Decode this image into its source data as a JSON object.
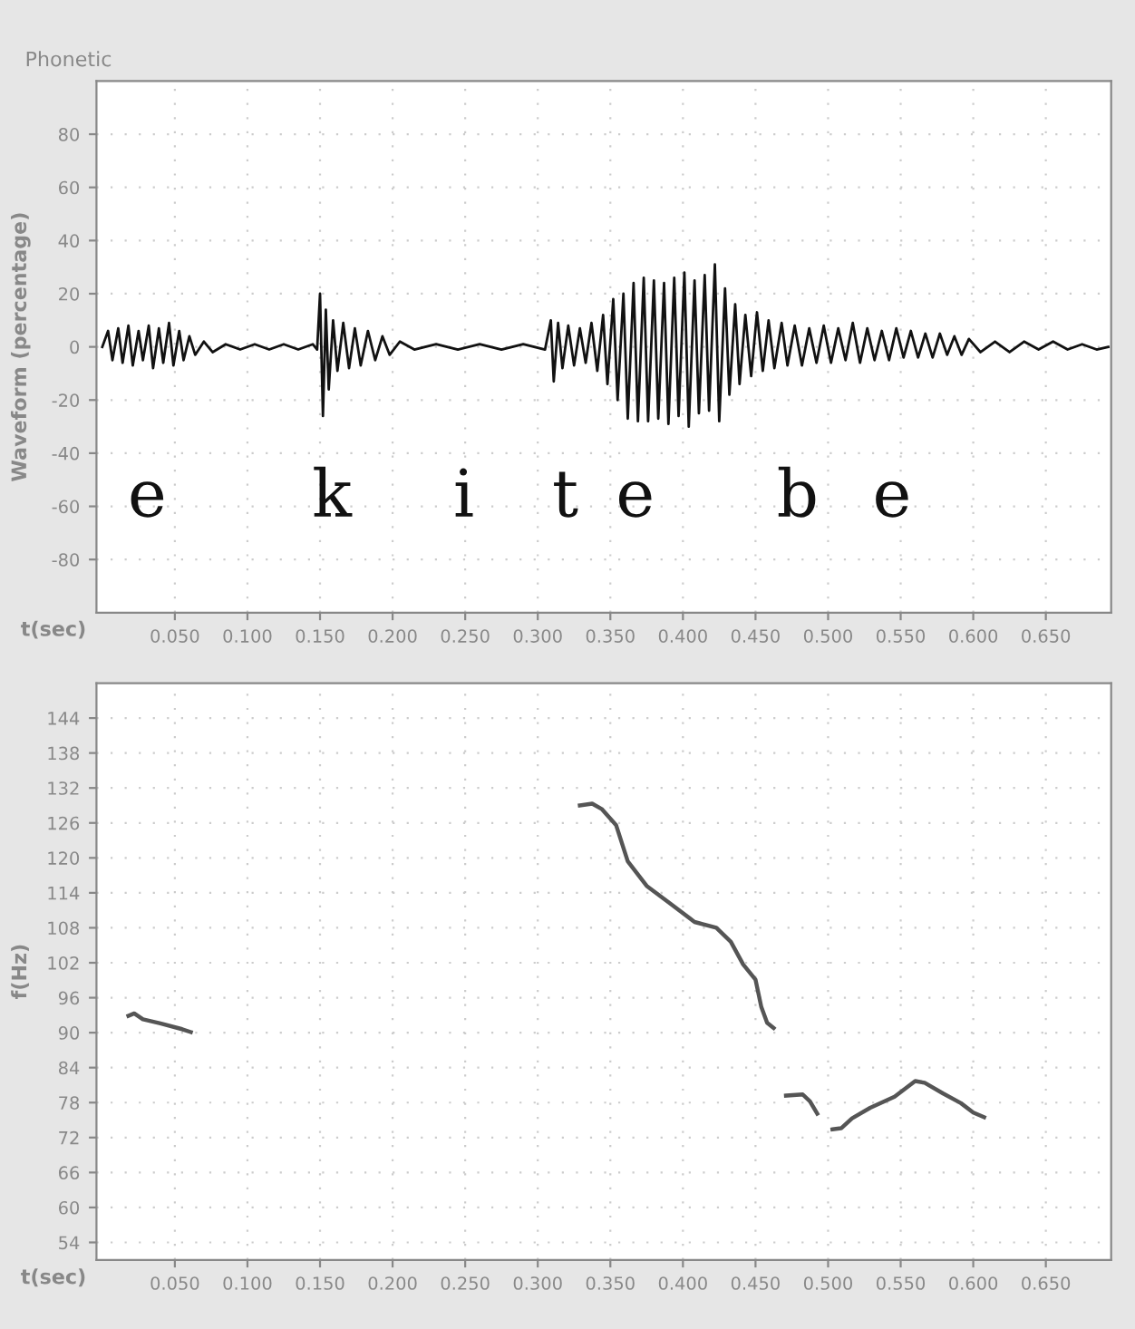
{
  "chart_data": [
    {
      "type": "line",
      "title": "Phonetic",
      "xlabel": "t(sec)",
      "ylabel": "Waveform (percentage)",
      "grid": true,
      "x": [
        0.0,
        0.004,
        0.007,
        0.011,
        0.014,
        0.018,
        0.021,
        0.025,
        0.028,
        0.032,
        0.035,
        0.039,
        0.042,
        0.046,
        0.049,
        0.053,
        0.056,
        0.06,
        0.064,
        0.07,
        0.076,
        0.085,
        0.095,
        0.105,
        0.115,
        0.125,
        0.135,
        0.145,
        0.148,
        0.15,
        0.152,
        0.154,
        0.156,
        0.159,
        0.162,
        0.166,
        0.17,
        0.174,
        0.178,
        0.183,
        0.188,
        0.193,
        0.198,
        0.205,
        0.215,
        0.23,
        0.245,
        0.26,
        0.275,
        0.29,
        0.305,
        0.309,
        0.311,
        0.314,
        0.317,
        0.321,
        0.325,
        0.329,
        0.333,
        0.337,
        0.341,
        0.345,
        0.348,
        0.352,
        0.355,
        0.359,
        0.362,
        0.366,
        0.369,
        0.373,
        0.376,
        0.38,
        0.383,
        0.387,
        0.39,
        0.394,
        0.397,
        0.401,
        0.404,
        0.408,
        0.411,
        0.415,
        0.418,
        0.422,
        0.425,
        0.429,
        0.432,
        0.436,
        0.439,
        0.443,
        0.447,
        0.451,
        0.455,
        0.459,
        0.463,
        0.468,
        0.472,
        0.477,
        0.482,
        0.487,
        0.492,
        0.497,
        0.502,
        0.507,
        0.512,
        0.517,
        0.522,
        0.527,
        0.532,
        0.537,
        0.542,
        0.547,
        0.552,
        0.557,
        0.562,
        0.567,
        0.572,
        0.577,
        0.582,
        0.587,
        0.592,
        0.597,
        0.605,
        0.615,
        0.625,
        0.635,
        0.645,
        0.655,
        0.665,
        0.675,
        0.685,
        0.693
      ],
      "series": [
        {
          "color": "#111111",
          "values": [
            0,
            6,
            -5,
            7,
            -6,
            8,
            -7,
            6,
            -5,
            8,
            -8,
            7,
            -6,
            9,
            -7,
            6,
            -5,
            4,
            -3,
            2,
            -2,
            1,
            -1,
            1,
            -1,
            1,
            -1,
            1,
            -1,
            20,
            -26,
            14,
            -16,
            10,
            -9,
            9,
            -8,
            7,
            -7,
            6,
            -5,
            4,
            -3,
            2,
            -1,
            1,
            -1,
            1,
            -1,
            1,
            -1,
            10,
            -13,
            9,
            -8,
            8,
            -7,
            7,
            -6,
            9,
            -9,
            12,
            -14,
            18,
            -20,
            20,
            -27,
            24,
            -28,
            26,
            -28,
            25,
            -27,
            24,
            -29,
            26,
            -26,
            28,
            -30,
            25,
            -25,
            27,
            -24,
            31,
            -28,
            22,
            -18,
            16,
            -14,
            12,
            -11,
            13,
            -9,
            10,
            -8,
            9,
            -7,
            8,
            -7,
            7,
            -6,
            8,
            -6,
            7,
            -5,
            9,
            -6,
            7,
            -5,
            6,
            -5,
            7,
            -4,
            6,
            -4,
            5,
            -4,
            5,
            -3,
            4,
            -3,
            3,
            -2,
            2,
            -2,
            2,
            -1,
            2,
            -1,
            1,
            -1,
            0
          ]
        }
      ],
      "xlim": [
        -0.004,
        0.695
      ],
      "ylim": [
        -100,
        100
      ],
      "yticks": [
        -80,
        -60,
        -40,
        -20,
        0,
        20,
        40,
        60,
        80
      ],
      "xticks": [
        {
          "value": 0.05,
          "label": "0.050"
        },
        {
          "value": 0.1,
          "label": "0.100"
        },
        {
          "value": 0.15,
          "label": "0.150"
        },
        {
          "value": 0.2,
          "label": "0.200"
        },
        {
          "value": 0.25,
          "label": "0.250"
        },
        {
          "value": 0.3,
          "label": "0.300"
        },
        {
          "value": 0.35,
          "label": "0.350"
        },
        {
          "value": 0.4,
          "label": "0.400"
        },
        {
          "value": 0.45,
          "label": "0.450"
        },
        {
          "value": 0.5,
          "label": "0.500"
        },
        {
          "value": 0.55,
          "label": "0.550"
        },
        {
          "value": 0.6,
          "label": "0.600"
        },
        {
          "value": 0.65,
          "label": "0.650"
        }
      ],
      "annotations": [
        "e",
        "k",
        "i",
        "t",
        "e",
        "b",
        "e"
      ]
    },
    {
      "type": "line",
      "xlabel": "t(sec)",
      "ylabel": "f(Hz)",
      "grid": true,
      "x": [
        0.018,
        0.022,
        0.028,
        0.04,
        0.055,
        0.061,
        0.2,
        0.329,
        0.3375,
        0.344,
        0.354,
        0.362,
        0.375,
        0.3915,
        0.408,
        0.423,
        0.433,
        0.4415,
        0.45,
        0.454,
        0.458,
        0.4625,
        0.467,
        0.471,
        0.4825,
        0.4875,
        0.4925,
        0.498,
        0.503,
        0.509,
        0.5165,
        0.529,
        0.5458,
        0.56,
        0.5665,
        0.579,
        0.5915,
        0.6,
        0.6075
      ],
      "series": [
        {
          "color": "#555555",
          "values": [
            92.9,
            93.3,
            92.3,
            91.6,
            90.6,
            90.1,
            null,
            129.0,
            129.3,
            128.4,
            125.6,
            119.4,
            115.2,
            112.1,
            109.0,
            108.0,
            105.6,
            101.7,
            99.1,
            94.4,
            91.7,
            90.8,
            null,
            79.2,
            79.4,
            78.2,
            76.1,
            null,
            73.4,
            73.6,
            75.3,
            77.1,
            79.0,
            81.7,
            81.4,
            79.6,
            77.9,
            76.3,
            75.5
          ]
        }
      ],
      "xlim": [
        -0.004,
        0.695
      ],
      "ylim": [
        51,
        150
      ],
      "yticks": [
        54,
        60,
        66,
        72,
        78,
        84,
        90,
        96,
        102,
        108,
        114,
        120,
        126,
        132,
        138,
        144
      ],
      "xticks": [
        {
          "value": 0.05,
          "label": "0.050"
        },
        {
          "value": 0.1,
          "label": "0.100"
        },
        {
          "value": 0.15,
          "label": "0.150"
        },
        {
          "value": 0.2,
          "label": "0.200"
        },
        {
          "value": 0.25,
          "label": "0.250"
        },
        {
          "value": 0.3,
          "label": "0.300"
        },
        {
          "value": 0.35,
          "label": "0.350"
        },
        {
          "value": 0.4,
          "label": "0.400"
        },
        {
          "value": 0.45,
          "label": "0.450"
        },
        {
          "value": 0.5,
          "label": "0.500"
        },
        {
          "value": 0.55,
          "label": "0.550"
        },
        {
          "value": 0.6,
          "label": "0.600"
        },
        {
          "value": 0.65,
          "label": "0.650"
        }
      ]
    }
  ]
}
